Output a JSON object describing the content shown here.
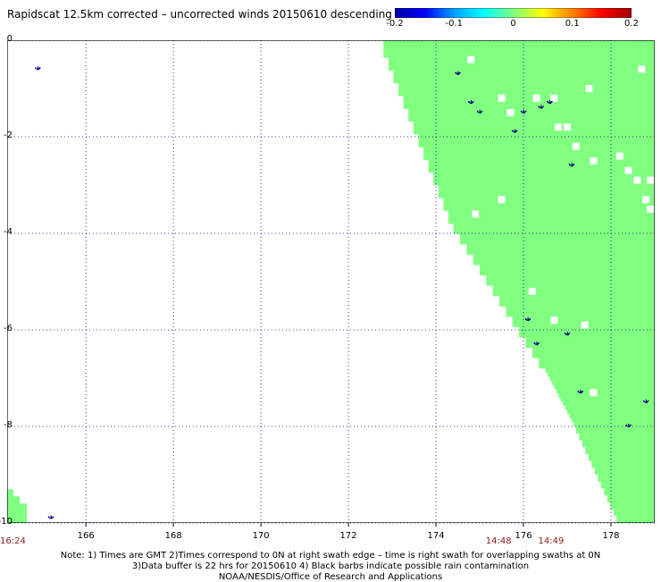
{
  "title": "Rapidscat 12.5km corrected – uncorrected winds 20150610 descending",
  "colorbar": {
    "ticks": [
      "-0.2",
      "-0.1",
      "0",
      "0.1",
      "0.2"
    ],
    "colors": [
      "#0000a0",
      "#0000ff",
      "#00a0ff",
      "#00ffff",
      "#80ff80",
      "#ffff00",
      "#ff8000",
      "#ff0000",
      "#a00000"
    ]
  },
  "map": {
    "lon_range": [
      164.2,
      179.0
    ],
    "lat_range": [
      -10.0,
      0.0
    ],
    "x_ticks": [
      {
        "value": 166,
        "label": "166"
      },
      {
        "value": 168,
        "label": "168"
      },
      {
        "value": 170,
        "label": "170"
      },
      {
        "value": 172,
        "label": "172"
      },
      {
        "value": 174,
        "label": "174"
      },
      {
        "value": 176,
        "label": "176"
      },
      {
        "value": 178,
        "label": "178"
      }
    ],
    "y_ticks": [
      {
        "value": 0,
        "label": "0"
      },
      {
        "value": -2,
        "label": "-2"
      },
      {
        "value": -4,
        "label": "-4"
      },
      {
        "value": -6,
        "label": "-6"
      },
      {
        "value": -8,
        "label": "-8"
      },
      {
        "value": -10,
        "label": "-10"
      }
    ],
    "grid": true,
    "swath_color": "#80ff80",
    "barb_color": "#000080",
    "swath_edge": [
      [
        172.8,
        -0.1
      ],
      [
        174.4,
        -3.8
      ],
      [
        176.5,
        -6.8
      ],
      [
        177.2,
        -8.0
      ],
      [
        178.2,
        -10.0
      ]
    ],
    "swath_corner": [
      164.2,
      -9.3
    ],
    "swath_gaps": [
      [
        174.8,
        -0.4
      ],
      [
        175.5,
        -1.2
      ],
      [
        175.7,
        -1.5
      ],
      [
        176.3,
        -1.2
      ],
      [
        176.7,
        -1.2
      ],
      [
        177.5,
        -1.0
      ],
      [
        178.7,
        -0.6
      ],
      [
        176.8,
        -1.8
      ],
      [
        177.0,
        -1.8
      ],
      [
        177.2,
        -2.2
      ],
      [
        177.6,
        -2.5
      ],
      [
        178.2,
        -2.4
      ],
      [
        178.4,
        -2.7
      ],
      [
        178.6,
        -2.9
      ],
      [
        178.9,
        -2.9
      ],
      [
        178.8,
        -3.3
      ],
      [
        178.9,
        -3.5
      ],
      [
        174.9,
        -3.6
      ],
      [
        175.5,
        -3.3
      ],
      [
        176.2,
        -5.2
      ],
      [
        176.7,
        -5.8
      ],
      [
        177.4,
        -5.9
      ],
      [
        177.6,
        -7.3
      ]
    ],
    "rain_flags": [
      [
        164.9,
        -0.6
      ],
      [
        174.5,
        -0.7
      ],
      [
        174.8,
        -1.3
      ],
      [
        175.0,
        -1.5
      ],
      [
        175.8,
        -1.9
      ],
      [
        176.0,
        -1.5
      ],
      [
        176.4,
        -1.4
      ],
      [
        176.6,
        -1.3
      ],
      [
        177.1,
        -2.6
      ],
      [
        178.8,
        -7.5
      ],
      [
        178.4,
        -8.0
      ],
      [
        176.1,
        -5.8
      ],
      [
        176.3,
        -6.3
      ],
      [
        177.0,
        -6.1
      ],
      [
        177.3,
        -7.3
      ],
      [
        165.2,
        -9.9
      ]
    ]
  },
  "times": [
    {
      "label": "16:24",
      "lon": 164.2
    },
    {
      "label": "14:48",
      "lon": 175.3
    },
    {
      "label": "14:49",
      "lon": 176.5
    }
  ],
  "notes": [
    "Note: 1) Times are GMT 2)Times correspond to 0N at right swath edge – time is right swath for overlapping swaths at 0N",
    "3)Data buffer is 22 hrs for 20150610 4) Black barbs indicate possible rain contamination",
    "NOAA/NESDIS/Office of Research and Applications"
  ]
}
